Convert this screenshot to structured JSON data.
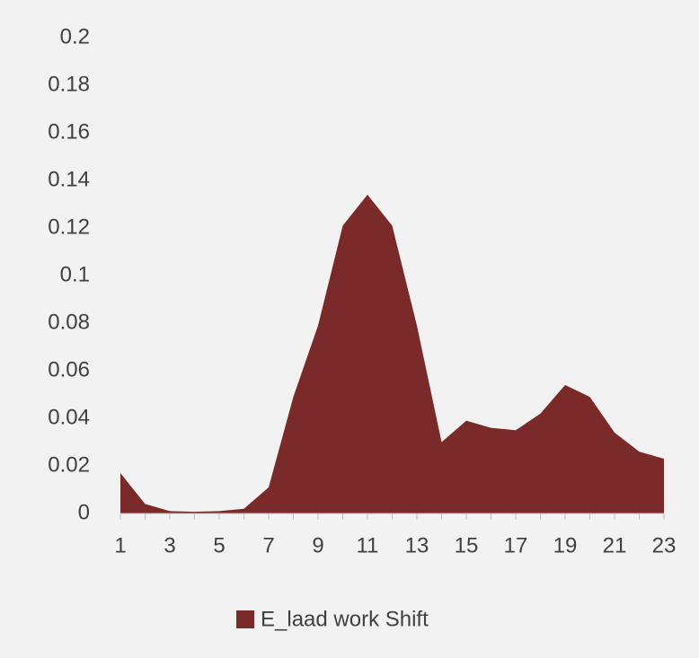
{
  "chart_data": {
    "type": "area",
    "categories": [
      1,
      null,
      3,
      null,
      5,
      null,
      7,
      null,
      9,
      null,
      11,
      null,
      13,
      null,
      15,
      null,
      17,
      null,
      19,
      null,
      21,
      null,
      23
    ],
    "series": [
      {
        "name": "E_laad work Shift",
        "color": "#7b2a2a",
        "values": [
          0.017,
          0.004,
          0.001,
          0.0007,
          0.001,
          0.002,
          0.011,
          0.049,
          0.079,
          0.121,
          0.134,
          0.121,
          0.079,
          0.03,
          0.039,
          0.036,
          0.035,
          0.042,
          0.054,
          0.049,
          0.034,
          0.026,
          0.023
        ]
      }
    ],
    "ylim": [
      0,
      0.2
    ],
    "yticks": [
      0,
      0.02,
      0.04,
      0.06,
      0.08,
      0.1,
      0.12,
      0.14,
      0.16,
      0.18,
      0.2
    ],
    "legend": "bottom"
  }
}
